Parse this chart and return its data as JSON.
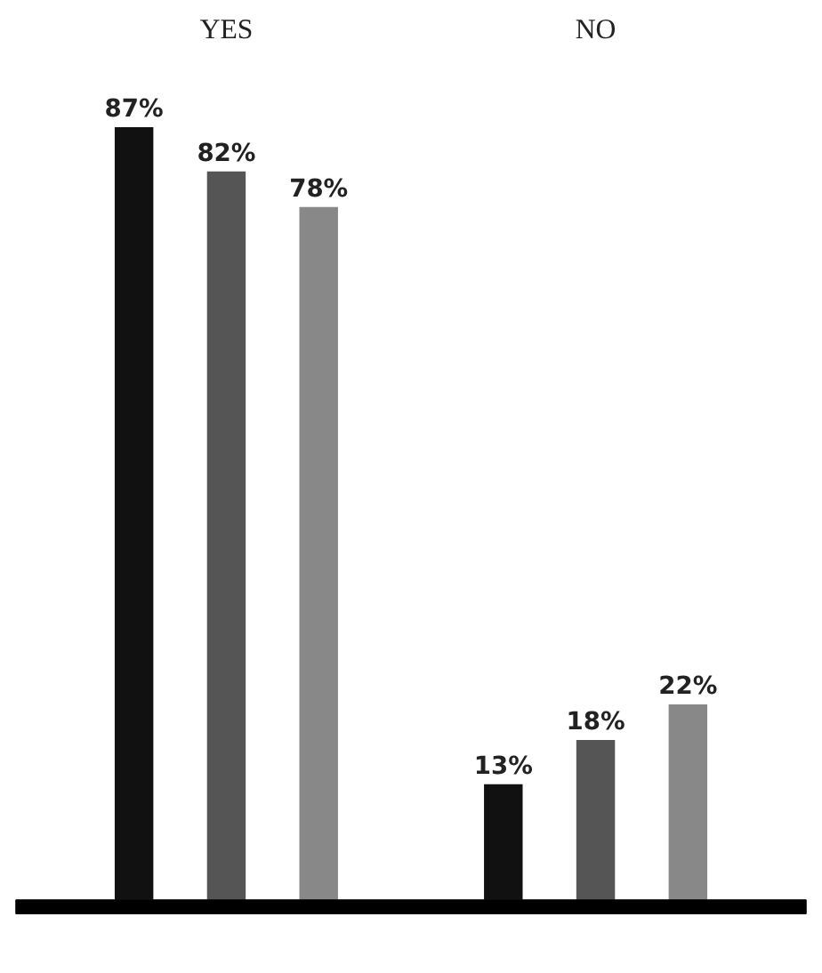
{
  "chart_data": {
    "type": "bar",
    "categories": [
      "YES",
      "NO"
    ],
    "series": [
      {
        "color": "#111111",
        "values": [
          87,
          13
        ],
        "value_labels": [
          "87%",
          "13%"
        ]
      },
      {
        "color": "#555555",
        "values": [
          82,
          18
        ],
        "value_labels": [
          "82%",
          "18%"
        ]
      },
      {
        "color": "#888888",
        "values": [
          78,
          22
        ],
        "value_labels": [
          "78%",
          "22%"
        ]
      }
    ],
    "grid": false,
    "legend": false
  }
}
